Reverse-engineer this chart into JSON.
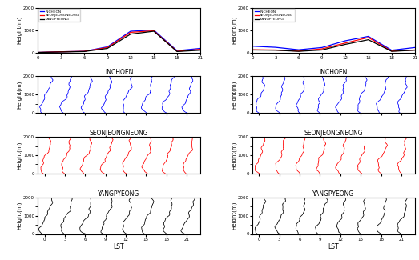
{
  "fig_width": 5.23,
  "fig_height": 3.25,
  "dpi": 100,
  "colors": {
    "incheon": "#0000FF",
    "seonjeongneong": "#FF0000",
    "yangpyeong": "#000000"
  },
  "pbl_clear": {
    "times": [
      0,
      3,
      6,
      9,
      12,
      15,
      18,
      21
    ],
    "incheon": [
      0,
      30,
      50,
      250,
      950,
      1000,
      80,
      180
    ],
    "seonjeongneong": [
      0,
      30,
      50,
      220,
      900,
      970,
      50,
      140
    ],
    "yangpyeong": [
      0,
      20,
      40,
      180,
      820,
      950,
      40,
      100
    ]
  },
  "pbl_cloudy": {
    "times": [
      0,
      3,
      6,
      9,
      12,
      15,
      18,
      21
    ],
    "incheon": [
      280,
      230,
      120,
      220,
      520,
      720,
      100,
      220
    ],
    "seonjeongneong": [
      120,
      110,
      60,
      160,
      420,
      670,
      60,
      110
    ],
    "yangpyeong": [
      110,
      100,
      50,
      110,
      360,
      570,
      50,
      100
    ]
  },
  "legend_labels": [
    "INCHEON",
    "SEONJEONGNEONG",
    "YANGPYEONG"
  ],
  "xlim": [
    0,
    21
  ],
  "ylim_pbl": [
    0,
    2000
  ],
  "xticks": [
    0,
    3,
    6,
    9,
    12,
    15,
    18,
    21
  ],
  "yticks_pbl": [
    0,
    1000,
    2000
  ],
  "xlabel": "LST",
  "ylabel": "Height(m)",
  "title_incheon": "INCHOEN",
  "title_seonjeong": "SEONJEONGNEONG",
  "title_yangpyeong": "YANGPYEONG",
  "sounding_hours": [
    0,
    3,
    6,
    9,
    12,
    15,
    18,
    21
  ]
}
